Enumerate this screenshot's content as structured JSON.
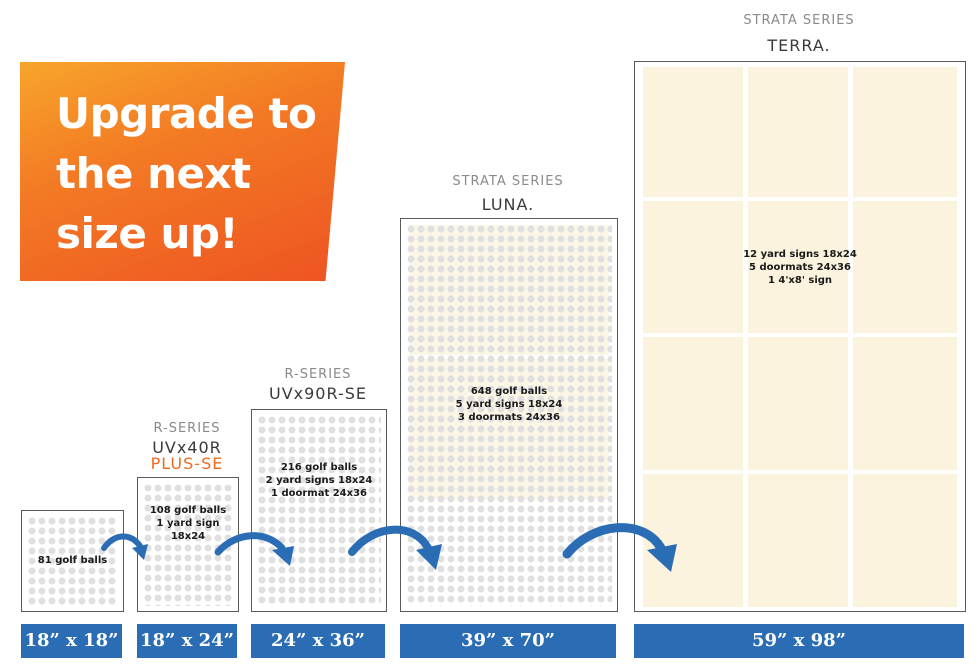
{
  "headline": "Upgrade to\nthe next\nsize up!",
  "machines": [
    {
      "size": "18” x 18”",
      "lines": [
        "81 golf balls"
      ]
    },
    {
      "series": "R-SERIES",
      "model": "UVx40R",
      "model_suffix": "PLUS-SE",
      "size": "18” x 24”",
      "lines": [
        "108 golf balls",
        "1 yard sign 18x24"
      ]
    },
    {
      "series": "R-SERIES",
      "model": "UVx90R-SE",
      "size": "24” x 36”",
      "lines": [
        "216 golf balls",
        "2 yard signs 18x24",
        "1 doormat 24x36"
      ]
    },
    {
      "series": "STRATA SERIES",
      "model": "LUNA.",
      "size": "39” x 70”",
      "lines": [
        "648 golf balls",
        "5 yard signs 18x24",
        "3 doormats 24x36"
      ]
    },
    {
      "series": "STRATA SERIES",
      "model": "TERRA.",
      "size": "59” x 98”",
      "lines": [
        "12 yard signs 18x24",
        "5 doormats 24x36",
        "1 4'x8' sign"
      ]
    }
  ],
  "colors": {
    "banner_start": "#f7a52b",
    "banner_end": "#ee5322",
    "size_bar": "#2a6db5",
    "arrow": "#2a6db5",
    "accent_orange": "#ee6a1f"
  },
  "icons": [
    "curved-arrow-icon"
  ]
}
